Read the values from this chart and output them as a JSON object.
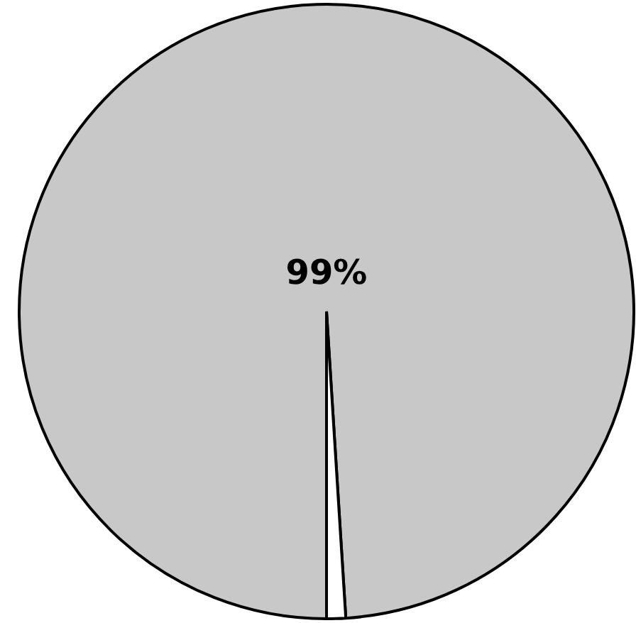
{
  "chart_data": {
    "type": "pie",
    "categories": [
      null,
      null
    ],
    "values": [
      99,
      1
    ],
    "colors": [
      "#c8c8c8",
      "#ffffff"
    ],
    "value_labels": [
      "99%",
      null
    ],
    "legend": false
  }
}
